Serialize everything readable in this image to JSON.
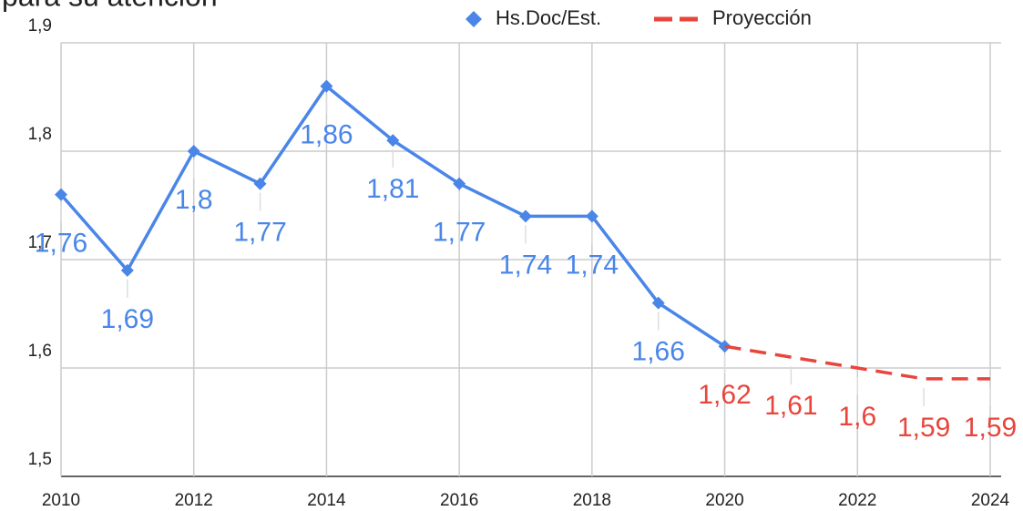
{
  "chart_data": {
    "type": "line",
    "title": "para su atención",
    "x": [
      2010,
      2011,
      2012,
      2013,
      2014,
      2015,
      2016,
      2017,
      2018,
      2019,
      2020,
      2021,
      2022,
      2023,
      2024
    ],
    "series": [
      {
        "name": "Hs.Doc/Est.",
        "color": "#4a86e8",
        "marker": "diamond",
        "dashed": false,
        "values": [
          1.76,
          1.69,
          1.8,
          1.77,
          1.86,
          1.81,
          1.77,
          1.74,
          1.74,
          1.66,
          1.62,
          null,
          null,
          null,
          null
        ],
        "value_labels": [
          "1,76",
          "1,69",
          "1,8",
          "1,77",
          "1,86",
          "1,81",
          "1,77",
          "1,74",
          "1,74",
          "1,66",
          null,
          null,
          null,
          null,
          null
        ]
      },
      {
        "name": "Proyección",
        "color": "#e8453c",
        "marker": null,
        "dashed": true,
        "values": [
          null,
          null,
          null,
          null,
          null,
          null,
          null,
          null,
          null,
          null,
          1.62,
          1.61,
          1.6,
          1.59,
          1.59
        ],
        "value_labels": [
          null,
          null,
          null,
          null,
          null,
          null,
          null,
          null,
          null,
          null,
          "1,62",
          "1,61",
          "1,6",
          "1,59",
          "1,59"
        ]
      }
    ],
    "xlim": [
      2010,
      2024
    ],
    "xticks": [
      2010,
      2012,
      2014,
      2016,
      2018,
      2020,
      2022,
      2024
    ],
    "ylim": [
      1.5,
      1.9
    ],
    "yticks": [
      {
        "value": 1.5,
        "label": "1,5"
      },
      {
        "value": 1.6,
        "label": "1,6"
      },
      {
        "value": 1.7,
        "label": "1,7"
      },
      {
        "value": 1.8,
        "label": "1,8"
      },
      {
        "value": 1.9,
        "label": "1,9"
      }
    ],
    "grid": true,
    "legend": "top"
  }
}
